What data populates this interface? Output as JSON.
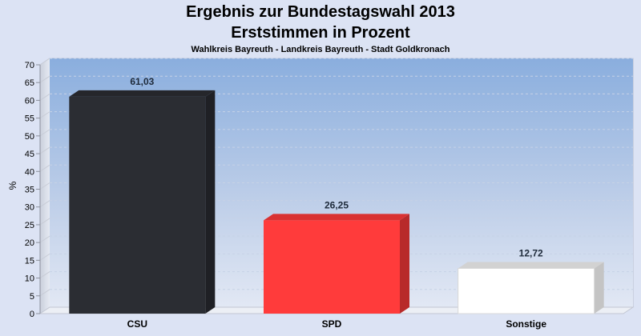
{
  "chart_data": {
    "type": "bar",
    "title": "Ergebnis zur Bundestagswahl 2013",
    "title2": "Erststimmen in Prozent",
    "subtitle": "Wahlkreis Bayreuth - Landkreis Bayreuth - Stadt Goldkronach",
    "xlabel": "",
    "ylabel": "%",
    "ylim": [
      0,
      70
    ],
    "ytick_step": 5,
    "grid": true,
    "categories": [
      "CSU",
      "SPD",
      "Sonstige"
    ],
    "values": [
      61.03,
      26.25,
      12.72
    ],
    "value_labels": [
      "61,03",
      "26,25",
      "12,72"
    ],
    "colors": [
      "#2b2d33",
      "#ff3b3b",
      "#ffffff"
    ]
  }
}
